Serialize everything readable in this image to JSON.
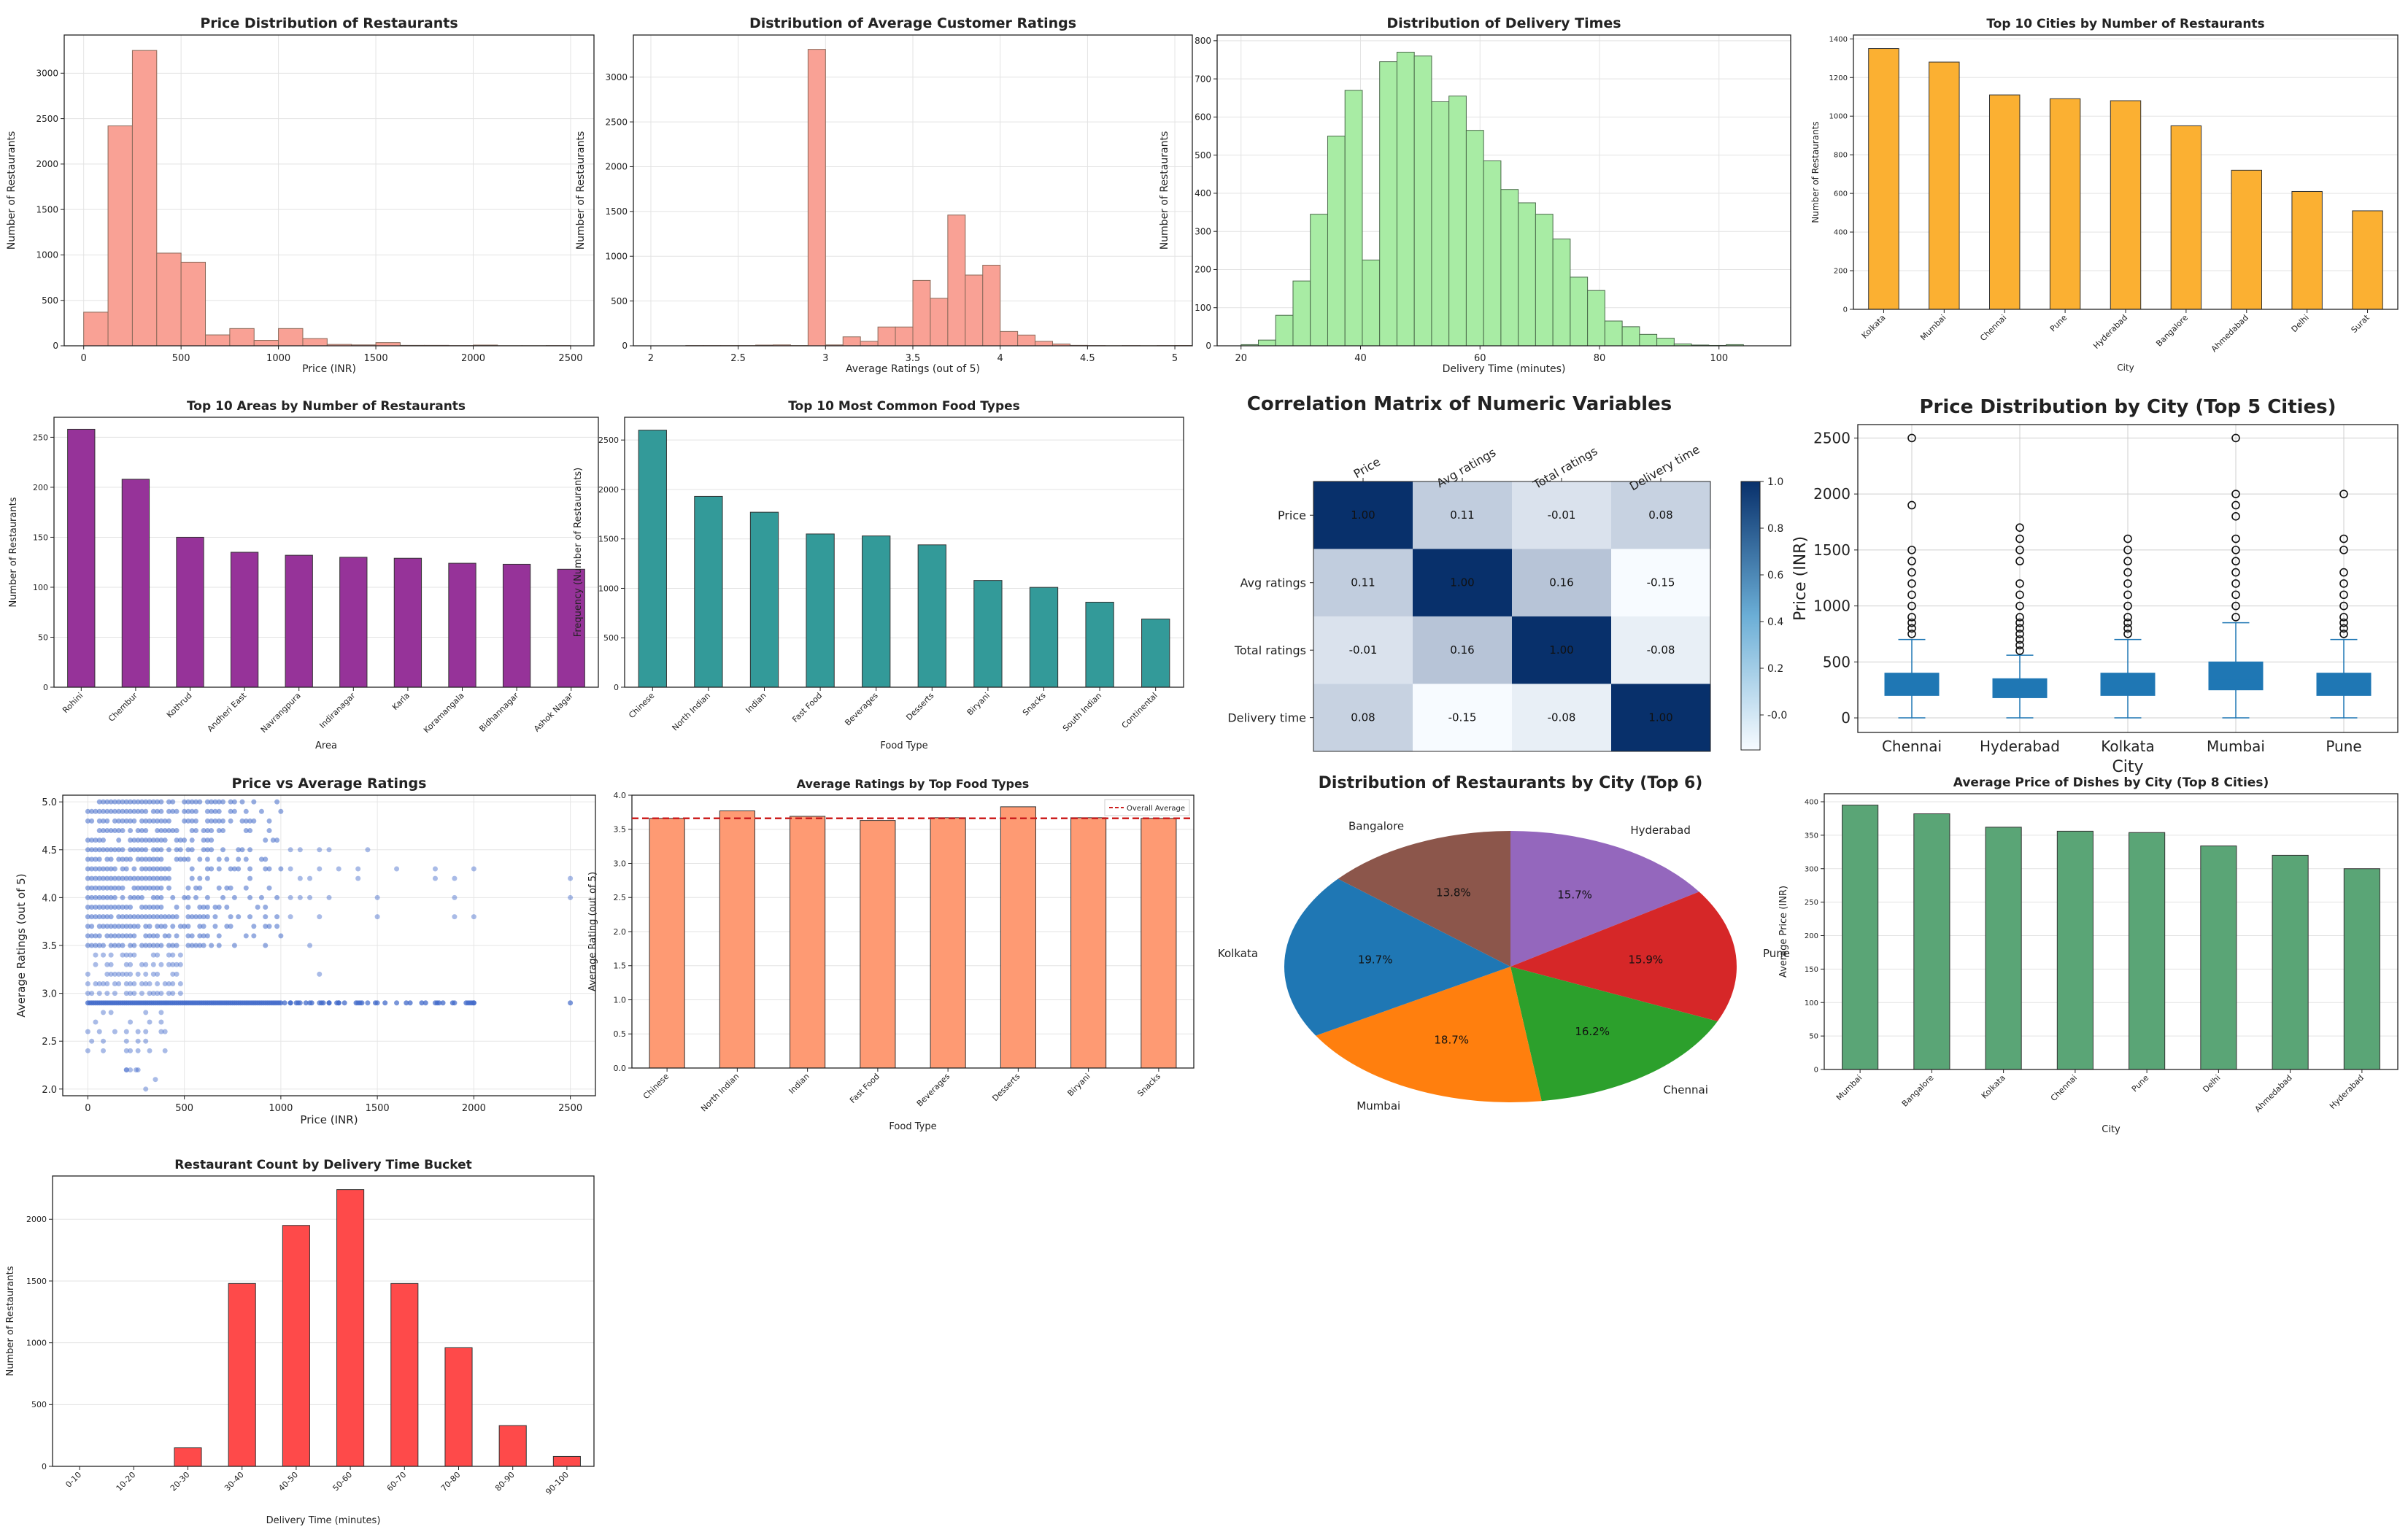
{
  "chart_data": [
    {
      "id": "price_hist",
      "type": "bar",
      "title": "Price Distribution of Restaurants",
      "xlabel": "Price (INR)",
      "ylabel": "Number of Restaurants",
      "xlim": [
        -100,
        2620
      ],
      "ylim": [
        0,
        3420
      ],
      "xticks": [
        0,
        500,
        1000,
        1500,
        2000,
        2500
      ],
      "yticks": [
        0,
        500,
        1000,
        1500,
        2000,
        2500,
        3000
      ],
      "bin_start": 0,
      "bin_width": 125,
      "values": [
        370,
        2420,
        3250,
        1020,
        920,
        120,
        190,
        60,
        190,
        80,
        15,
        10,
        35,
        5,
        5,
        3,
        8,
        2,
        2,
        3
      ],
      "color": "#f9a195",
      "edge": "#8a6a5a",
      "grid": true
    },
    {
      "id": "ratings_hist",
      "type": "bar",
      "title": "Distribution of Average Customer Ratings",
      "xlabel": "Average Ratings (out of 5)",
      "ylabel": "Number of Restaurants",
      "xlim": [
        1.9,
        5.1
      ],
      "ylim": [
        0,
        3470
      ],
      "xticks": [
        2.0,
        2.5,
        3.0,
        3.5,
        4.0,
        4.5,
        5.0
      ],
      "yticks": [
        0,
        500,
        1000,
        1500,
        2000,
        2500,
        3000
      ],
      "bin_start": 2.0,
      "bin_width": 0.1,
      "values": [
        0,
        0,
        3,
        3,
        3,
        3,
        8,
        10,
        3,
        3310,
        10,
        100,
        50,
        210,
        210,
        730,
        530,
        1460,
        790,
        900,
        160,
        120,
        50,
        20,
        5,
        3,
        2,
        3,
        2,
        3,
        4
      ],
      "color": "#f9a195",
      "edge": "#8a6a5a",
      "grid": true
    },
    {
      "id": "delivery_hist",
      "type": "bar",
      "title": "Distribution of Delivery Times",
      "xlabel": "Delivery Time (minutes)",
      "ylabel": "Number of Restaurants",
      "xlim": [
        16,
        112
      ],
      "ylim": [
        0,
        815
      ],
      "xticks": [
        20,
        40,
        60,
        80,
        100
      ],
      "yticks": [
        0,
        100,
        200,
        300,
        400,
        500,
        600,
        700,
        800
      ],
      "bin_start": 20,
      "bin_width": 2.9,
      "values": [
        3,
        15,
        80,
        170,
        345,
        550,
        670,
        225,
        745,
        770,
        760,
        640,
        655,
        565,
        485,
        410,
        375,
        345,
        280,
        180,
        145,
        65,
        50,
        30,
        20,
        5,
        2,
        1,
        3
      ],
      "color": "#a8eca4",
      "edge": "#4a6a4a",
      "grid": true
    },
    {
      "id": "top_cities",
      "type": "bar",
      "title": "Top 10 Cities by Number of Restaurants",
      "xlabel": "City",
      "ylabel": "Number of Restaurants",
      "categories": [
        "Kolkata",
        "Mumbai",
        "Chennai",
        "Pune",
        "Hyderabad",
        "Bangalore",
        "Ahmedabad",
        "Delhi",
        "Surat"
      ],
      "values": [
        1350,
        1280,
        1110,
        1090,
        1080,
        950,
        720,
        610,
        510
      ],
      "ylim": [
        0,
        1420
      ],
      "yticks": [
        0,
        200,
        400,
        600,
        800,
        1000,
        1200,
        1400
      ],
      "color": "#fbb032",
      "edge": "#333333",
      "grid": true
    },
    {
      "id": "top_areas",
      "type": "bar",
      "title": "Top 10 Areas by Number of Restaurants",
      "xlabel": "Area",
      "ylabel": "Number of Restaurants",
      "categories": [
        "Rohini",
        "Chembur",
        "Kothrud",
        "Andheri East",
        "Navrangpura",
        "Indiranagar",
        "Karla",
        "Koramangala",
        "Bidhannagar",
        "Ashok Nagar"
      ],
      "values": [
        258,
        208,
        150,
        135,
        132,
        130,
        129,
        124,
        123,
        118
      ],
      "ylim": [
        0,
        270
      ],
      "yticks": [
        0,
        50,
        100,
        150,
        200,
        250
      ],
      "color": "#963399",
      "edge": "#333333",
      "grid": true
    },
    {
      "id": "top_foods",
      "type": "bar",
      "title": "Top 10 Most Common Food Types",
      "xlabel": "Food Type",
      "ylabel": "Frequency (Number of Restaurants)",
      "categories": [
        "Chinese",
        "North Indian",
        "Indian",
        "Fast Food",
        "Beverages",
        "Desserts",
        "Biryani",
        "Snacks",
        "South Indian",
        "Continental"
      ],
      "values": [
        2600,
        1930,
        1770,
        1550,
        1530,
        1440,
        1080,
        1010,
        860,
        690
      ],
      "ylim": [
        0,
        2730
      ],
      "yticks": [
        0,
        500,
        1000,
        1500,
        2000,
        2500
      ],
      "color": "#339a99",
      "edge": "#333333",
      "grid": true
    },
    {
      "id": "corr",
      "type": "heatmap",
      "title": "Correlation Matrix of Numeric Variables",
      "labels": [
        "Price",
        "Avg ratings",
        "Total ratings",
        "Delivery time"
      ],
      "matrix": [
        [
          1.0,
          0.11,
          -0.01,
          0.08
        ],
        [
          0.11,
          1.0,
          0.16,
          -0.15
        ],
        [
          -0.01,
          0.16,
          1.0,
          -0.08
        ],
        [
          0.08,
          -0.15,
          -0.08,
          1.0
        ]
      ],
      "cell_labels": [
        [
          "1.00",
          "0.11",
          "-0.01",
          "0.08"
        ],
        [
          "0.11",
          "1.00",
          "0.16",
          "-0.15"
        ],
        [
          "-0.01",
          "0.16",
          "1.00",
          "-0.08"
        ],
        [
          "0.08",
          "-0.15",
          "-0.08",
          "1.00"
        ]
      ],
      "colorbar_ticks": [
        "-0.0",
        "0.2",
        "0.4",
        "0.6",
        "0.8",
        "1.0"
      ],
      "vmin": -0.15,
      "vmax": 1.0
    },
    {
      "id": "boxplot",
      "type": "box",
      "title": "Price Distribution by City (Top 5 Cities)",
      "xlabel": "City",
      "ylabel": "Price (INR)",
      "categories": [
        "Chennai",
        "Hyderabad",
        "Kolkata",
        "Mumbai",
        "Pune"
      ],
      "ylim": [
        -130,
        2620
      ],
      "yticks": [
        0,
        500,
        1000,
        1500,
        2000,
        2500
      ],
      "boxes": [
        {
          "min": 0,
          "q1": 200,
          "median": 300,
          "q3": 400,
          "max": 700,
          "outliers": [
            750,
            800,
            850,
            900,
            1000,
            1100,
            1200,
            1300,
            1400,
            1500,
            1900,
            2500
          ]
        },
        {
          "min": 0,
          "q1": 180,
          "median": 250,
          "q3": 350,
          "max": 560,
          "outliers": [
            600,
            650,
            700,
            750,
            800,
            850,
            900,
            1000,
            1100,
            1200,
            1400,
            1500,
            1600,
            1700
          ]
        },
        {
          "min": 0,
          "q1": 200,
          "median": 300,
          "q3": 400,
          "max": 700,
          "outliers": [
            750,
            800,
            850,
            900,
            1000,
            1100,
            1200,
            1300,
            1400,
            1500,
            1600
          ]
        },
        {
          "min": 0,
          "q1": 250,
          "median": 350,
          "q3": 500,
          "max": 850,
          "outliers": [
            900,
            1000,
            1100,
            1200,
            1300,
            1400,
            1500,
            1600,
            1800,
            1900,
            2000,
            2500
          ]
        },
        {
          "min": 0,
          "q1": 200,
          "median": 300,
          "q3": 400,
          "max": 700,
          "outliers": [
            750,
            800,
            850,
            900,
            1000,
            1100,
            1200,
            1300,
            1500,
            1600,
            2000
          ]
        }
      ],
      "color": "#1f77b4",
      "grid": true
    },
    {
      "id": "scatter",
      "type": "scatter",
      "title": "Price vs Average Ratings",
      "xlabel": "Price (INR)",
      "ylabel": "Average Ratings (out of 5)",
      "xlim": [
        -130,
        2630
      ],
      "ylim": [
        1.93,
        5.07
      ],
      "xticks": [
        0,
        500,
        1000,
        1500,
        2000,
        2500
      ],
      "yticks": [
        2.0,
        2.5,
        3.0,
        3.5,
        4.0,
        4.5,
        5.0
      ],
      "color": "#4169c9",
      "grid": true
    },
    {
      "id": "ratings_by_food",
      "type": "bar",
      "title": "Average Ratings by Top Food Types",
      "xlabel": "Food Type",
      "ylabel": "Average Rating (out of 5)",
      "categories": [
        "Chinese",
        "North Indian",
        "Indian",
        "Fast Food",
        "Beverages",
        "Desserts",
        "Biryani",
        "Snacks"
      ],
      "values": [
        3.66,
        3.77,
        3.69,
        3.63,
        3.67,
        3.83,
        3.67,
        3.66
      ],
      "ylim": [
        0,
        4.0
      ],
      "yticks": [
        "0.0",
        "0.5",
        "1.0",
        "1.5",
        "2.0",
        "2.5",
        "3.0",
        "3.5",
        "4.0"
      ],
      "overall_average": 3.66,
      "legend": "Overall Average",
      "color": "#fe9a73",
      "edge": "#333333",
      "grid": true
    },
    {
      "id": "city_pie",
      "type": "pie",
      "title": "Distribution of Restaurants by City (Top 6)",
      "labels": [
        "Hyderabad",
        "Pune",
        "Chennai",
        "Mumbai",
        "Kolkata",
        "Bangalore"
      ],
      "values": [
        15.7,
        15.9,
        16.2,
        18.7,
        19.7,
        13.8
      ],
      "pct_labels": [
        "15.7%",
        "15.9%",
        "16.2%",
        "18.7%",
        "19.7%",
        "13.8%"
      ],
      "colors": [
        "#9467bd",
        "#d62728",
        "#2ca02c",
        "#ff7f0e",
        "#1f77b4",
        "#8c564b"
      ]
    },
    {
      "id": "avg_price_city",
      "type": "bar",
      "title": "Average Price of Dishes by City (Top 8 Cities)",
      "xlabel": "City",
      "ylabel": "Average Price (INR)",
      "categories": [
        "Mumbai",
        "Bangalore",
        "Kolkata",
        "Chennai",
        "Pune",
        "Delhi",
        "Ahmedabad",
        "Hyderabad"
      ],
      "values": [
        395,
        382,
        362,
        356,
        354,
        334,
        320,
        300
      ],
      "ylim": [
        0,
        412
      ],
      "yticks": [
        0,
        50,
        100,
        150,
        200,
        250,
        300,
        350,
        400
      ],
      "color": "#5aa576",
      "edge": "#333333",
      "grid": true
    },
    {
      "id": "delivery_buckets",
      "type": "bar",
      "title": "Restaurant Count by Delivery Time Bucket",
      "xlabel": "Delivery Time (minutes)",
      "ylabel": "Number of Restaurants",
      "categories": [
        "0-10",
        "10-20",
        "20-30",
        "30-40",
        "40-50",
        "50-60",
        "60-70",
        "70-80",
        "80-90",
        "90-100"
      ],
      "values": [
        0,
        0,
        150,
        1480,
        1950,
        2240,
        1480,
        960,
        330,
        80
      ],
      "ylim": [
        0,
        2350
      ],
      "yticks": [
        0,
        500,
        1000,
        1500,
        2000
      ],
      "color": "#fe4a4a",
      "edge": "#333333",
      "grid": true
    }
  ]
}
